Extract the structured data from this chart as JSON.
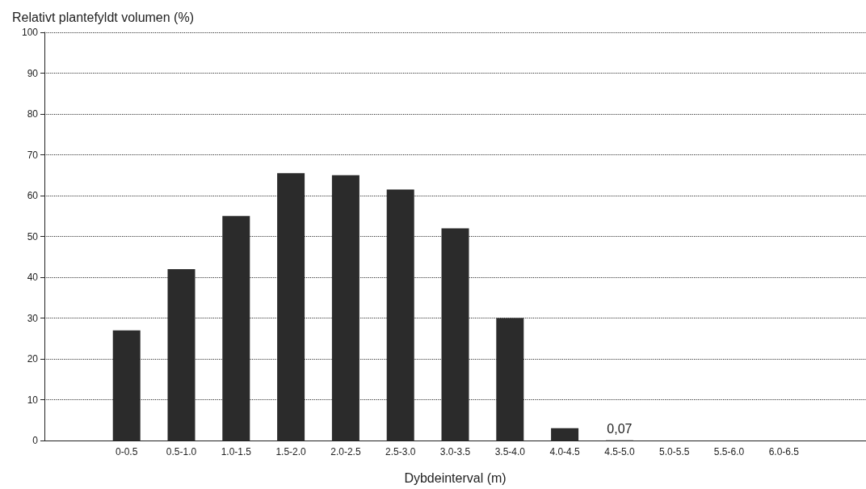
{
  "chart_data": {
    "type": "bar",
    "ylabel": "Relativt plantefyldt volumen (%)",
    "xlabel": "Dybdeinterval (m)",
    "categories": [
      null,
      "0-0.5",
      "0.5-1.0",
      "1.0-1.5",
      "1.5-2.0",
      "2.0-2.5",
      "2.5-3.0",
      "3.0-3.5",
      "3.5-4.0",
      "4.0-4.5",
      "4.5-5.0",
      "5.0-5.5",
      "5.5-6.0",
      "6.0-6.5",
      null
    ],
    "values": [
      null,
      27,
      42,
      55,
      65.5,
      65,
      61.5,
      52,
      30,
      3,
      0.07,
      0,
      0,
      0,
      null
    ],
    "value_labels": [
      null,
      null,
      null,
      null,
      null,
      null,
      null,
      null,
      null,
      null,
      "0,07",
      null,
      null,
      null,
      null
    ],
    "color": "#2b2b2b",
    "ylim": [
      0,
      100
    ],
    "yticks": [
      0,
      10,
      20,
      30,
      40,
      50,
      60,
      70,
      80,
      90,
      100
    ],
    "grid": "y"
  }
}
